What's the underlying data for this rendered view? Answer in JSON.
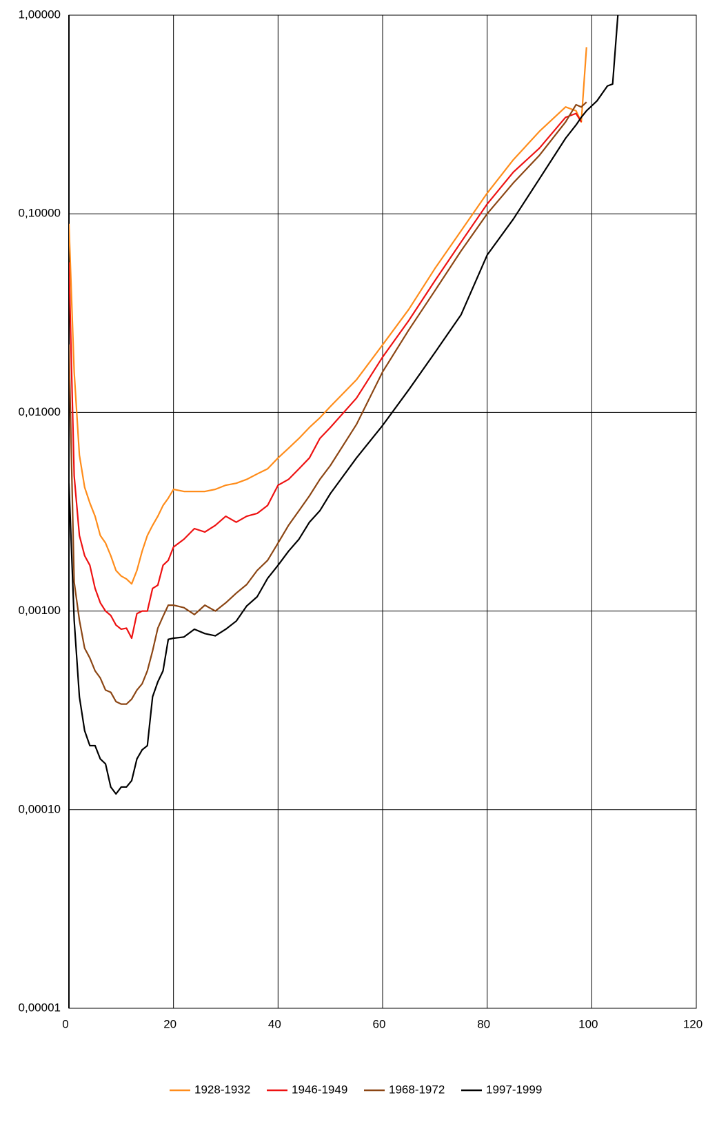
{
  "chart_data": {
    "type": "line",
    "log_scale": true,
    "grid": true,
    "legend": "bottom",
    "x": [
      0,
      1,
      2,
      3,
      4,
      5,
      6,
      7,
      8,
      9,
      10,
      11,
      12,
      13,
      14,
      15,
      16,
      17,
      18,
      19,
      20,
      22,
      24,
      26,
      28,
      30,
      32,
      34,
      36,
      38,
      40,
      42,
      44,
      46,
      48,
      50,
      55,
      60,
      65,
      70,
      75,
      80,
      85,
      90,
      95,
      97,
      98,
      99,
      101,
      103,
      104,
      105
    ],
    "xlim": [
      0,
      120
    ],
    "xticks": [
      0,
      20,
      40,
      60,
      80,
      100,
      120
    ],
    "ylim": [
      1e-05,
      1
    ],
    "yticks": [
      {
        "value": 1e-05,
        "label": "0,00001"
      },
      {
        "value": 0.0001,
        "label": "0,00010"
      },
      {
        "value": 0.001,
        "label": "0,00100"
      },
      {
        "value": 0.01,
        "label": "0,01000"
      },
      {
        "value": 0.1,
        "label": "0,10000"
      },
      {
        "value": 1,
        "label": "1,00000"
      }
    ],
    "series": [
      {
        "name": "1928-1932",
        "color": "#ff8c1a",
        "values": [
          0.089,
          0.016,
          0.0061,
          0.0042,
          0.0035,
          0.003,
          0.0024,
          0.0022,
          0.0019,
          0.0016,
          0.0015,
          0.00145,
          0.00137,
          0.0016,
          0.002,
          0.0024,
          0.0027,
          0.003,
          0.0034,
          0.0037,
          0.0041,
          0.004,
          0.004,
          0.004,
          0.0041,
          0.0043,
          0.0044,
          0.0046,
          0.0049,
          0.0052,
          0.0059,
          0.0066,
          0.0074,
          0.0084,
          0.0094,
          0.0107,
          0.0146,
          0.0219,
          0.033,
          0.053,
          0.082,
          0.127,
          0.187,
          0.26,
          0.345,
          0.33,
          0.29,
          0.69,
          null,
          null,
          null,
          null
        ]
      },
      {
        "name": "1946-1949",
        "color": "#ee1111",
        "values": [
          0.057,
          0.0048,
          0.0024,
          0.0019,
          0.0017,
          0.0013,
          0.0011,
          0.001,
          0.00095,
          0.00085,
          0.00081,
          0.00082,
          0.00073,
          0.00097,
          0.001,
          0.001,
          0.0013,
          0.00135,
          0.0017,
          0.0018,
          0.0021,
          0.0023,
          0.0026,
          0.0025,
          0.0027,
          0.003,
          0.0028,
          0.003,
          0.0031,
          0.0034,
          0.0043,
          0.0046,
          0.0052,
          0.0059,
          0.0074,
          0.0084,
          0.0118,
          0.019,
          0.029,
          0.046,
          0.072,
          0.112,
          0.162,
          0.214,
          0.306,
          0.32,
          0.29,
          null,
          null,
          null,
          null,
          null
        ]
      },
      {
        "name": "1968-1972",
        "color": "#8b4513",
        "values": [
          0.022,
          0.0014,
          0.0009,
          0.00065,
          0.00058,
          0.0005,
          0.00046,
          0.0004,
          0.00039,
          0.00035,
          0.00034,
          0.00034,
          0.00036,
          0.0004,
          0.00043,
          0.0005,
          0.00063,
          0.00082,
          0.00094,
          0.00107,
          0.00107,
          0.00104,
          0.00096,
          0.00107,
          0.001,
          0.0011,
          0.00123,
          0.00136,
          0.0016,
          0.0018,
          0.0022,
          0.0027,
          0.0032,
          0.0038,
          0.0046,
          0.0054,
          0.0087,
          0.016,
          0.026,
          0.041,
          0.065,
          0.1,
          0.143,
          0.197,
          0.29,
          0.354,
          0.345,
          0.365,
          null,
          null,
          null,
          null
        ]
      },
      {
        "name": "1997-1999",
        "color": "#000000",
        "values": [
          0.0044,
          0.0009,
          0.00037,
          0.00025,
          0.00021,
          0.00021,
          0.00018,
          0.00017,
          0.00013,
          0.00012,
          0.00013,
          0.00013,
          0.00014,
          0.00018,
          0.0002,
          0.00021,
          0.00037,
          0.00044,
          0.0005,
          0.00072,
          0.00073,
          0.00074,
          0.00081,
          0.00077,
          0.00075,
          0.00081,
          0.00089,
          0.00106,
          0.00118,
          0.00146,
          0.0017,
          0.002,
          0.0023,
          0.0028,
          0.0032,
          0.0039,
          0.0059,
          0.0086,
          0.013,
          0.02,
          0.031,
          0.062,
          0.094,
          0.15,
          0.24,
          0.28,
          0.306,
          0.33,
          0.37,
          0.44,
          0.45,
          1.0
        ]
      }
    ]
  }
}
